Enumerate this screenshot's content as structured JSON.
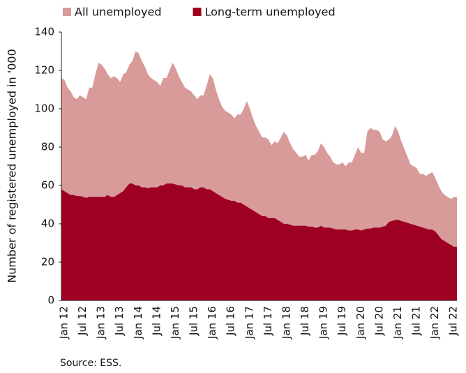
{
  "chart_data": {
    "type": "area",
    "ylabel": "Number of registered unemployed in '000",
    "source": "Source: ESS.",
    "categories": [
      "Jan 12",
      null,
      null,
      null,
      null,
      null,
      "Jul 12",
      null,
      null,
      null,
      null,
      null,
      "Jan 13",
      null,
      null,
      null,
      null,
      null,
      "Jul 13",
      null,
      null,
      null,
      null,
      null,
      "Jan 14",
      null,
      null,
      null,
      null,
      null,
      "Jul 14",
      null,
      null,
      null,
      null,
      null,
      "Jan 15",
      null,
      null,
      null,
      null,
      null,
      "Jul 15",
      null,
      null,
      null,
      null,
      null,
      "Jan 16",
      null,
      null,
      null,
      null,
      null,
      "Jul 16",
      null,
      null,
      null,
      null,
      null,
      "Jan 17",
      null,
      null,
      null,
      null,
      null,
      "Jul 17",
      null,
      null,
      null,
      null,
      null,
      "Jan 18",
      null,
      null,
      null,
      null,
      null,
      "Jul 18",
      null,
      null,
      null,
      null,
      null,
      "Jan 19",
      null,
      null,
      null,
      null,
      null,
      "Jul 19",
      null,
      null,
      null,
      null,
      null,
      "Jan 20",
      null,
      null,
      null,
      null,
      null,
      "Jul 20",
      null,
      null,
      null,
      null,
      null,
      "Jan 21",
      null,
      null,
      null,
      null,
      null,
      "Jul 21",
      null,
      null,
      null,
      null,
      null,
      "Jan 22",
      null,
      null,
      null,
      null,
      null,
      "Jul 22",
      null,
      null
    ],
    "series": [
      {
        "name": "All unemployed",
        "color": "#d99a9a",
        "values": [
          116,
          115,
          111,
          109,
          106,
          105,
          107,
          106,
          105,
          111,
          111,
          118,
          124,
          123,
          121,
          118,
          116,
          117,
          116,
          114,
          118,
          119,
          123,
          125,
          130,
          129,
          125,
          122,
          118,
          116,
          115,
          114,
          112,
          116,
          116,
          120,
          124,
          121,
          117,
          114,
          111,
          110,
          109,
          107,
          105,
          107,
          107,
          112,
          118,
          116,
          110,
          105,
          101,
          99,
          98,
          97,
          95,
          97,
          97,
          100,
          104,
          100,
          95,
          91,
          88,
          85,
          85,
          84,
          81,
          83,
          82,
          85,
          88,
          86,
          82,
          79,
          77,
          75,
          75,
          76,
          73,
          76,
          76,
          78,
          82,
          80,
          77,
          75,
          72,
          71,
          71,
          72,
          70,
          72,
          72,
          76,
          80,
          77,
          77,
          88,
          90,
          89,
          89,
          88,
          84,
          83,
          84,
          86,
          91,
          88,
          83,
          79,
          75,
          71,
          70,
          69,
          66,
          66,
          65,
          66,
          67,
          64,
          60,
          57,
          55,
          54,
          53,
          54,
          54
        ]
      },
      {
        "name": "Long-term unemployed",
        "color": "#9e0022",
        "values": [
          58,
          57,
          56,
          55,
          55,
          54.5,
          54.5,
          54,
          53.5,
          54,
          54,
          54,
          54,
          54,
          54,
          55,
          54,
          54,
          55,
          56,
          57,
          59,
          61,
          61,
          60,
          60,
          59,
          59,
          58.5,
          59,
          59,
          59,
          60,
          60,
          61,
          61,
          61,
          60.5,
          60,
          60,
          59,
          59,
          59,
          58,
          58,
          59,
          59,
          58,
          58,
          57,
          56,
          55,
          54,
          53,
          52.5,
          52,
          52,
          51,
          51,
          50,
          49,
          48,
          47,
          46,
          45,
          44,
          44,
          43,
          43,
          43,
          42,
          41,
          40,
          40,
          39.5,
          39,
          39,
          39,
          39,
          39,
          38.5,
          38.5,
          38,
          38,
          39,
          38,
          38,
          38,
          37.5,
          37,
          37,
          37,
          37,
          36.5,
          36.5,
          37,
          37,
          36.5,
          37,
          37.5,
          37.5,
          38,
          38,
          38,
          38.5,
          39,
          41,
          41.5,
          42,
          42,
          41.5,
          41,
          40.5,
          40,
          39.5,
          39,
          38.5,
          38,
          37.5,
          37,
          37,
          36,
          34,
          32,
          31,
          30,
          29,
          28,
          28
        ]
      }
    ],
    "ylim": [
      0,
      140
    ],
    "yticks": [
      0,
      20,
      40,
      60,
      80,
      100,
      120,
      140
    ]
  }
}
